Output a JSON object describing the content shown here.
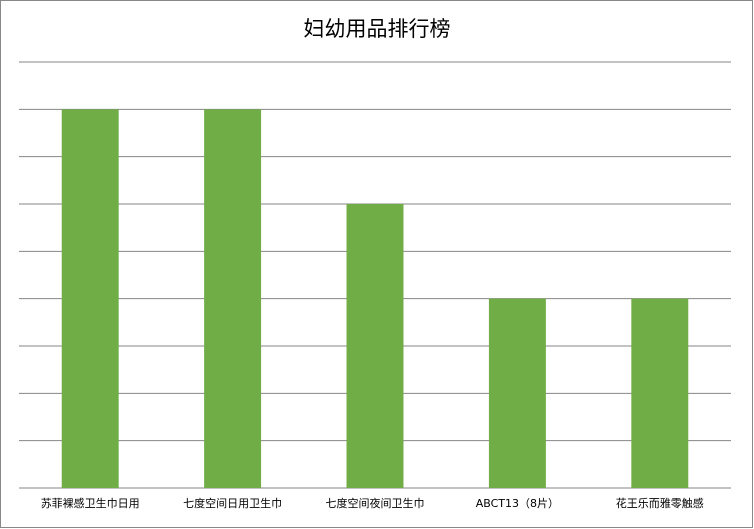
{
  "chart_data": {
    "type": "bar",
    "title": "妇幼用品排行榜",
    "categories": [
      "苏菲裸感卫生巾日用",
      "七度空间日用卫生巾",
      "七度空间夜间卫生巾",
      "ABCT13（8片）",
      "花王乐而雅零触感"
    ],
    "values": [
      8,
      8,
      6,
      4,
      4
    ],
    "color": "#70ad47",
    "ylim": [
      0,
      9
    ],
    "yticks": [
      0,
      1,
      2,
      3,
      4,
      5,
      6,
      7,
      8,
      9
    ],
    "grid": true
  }
}
